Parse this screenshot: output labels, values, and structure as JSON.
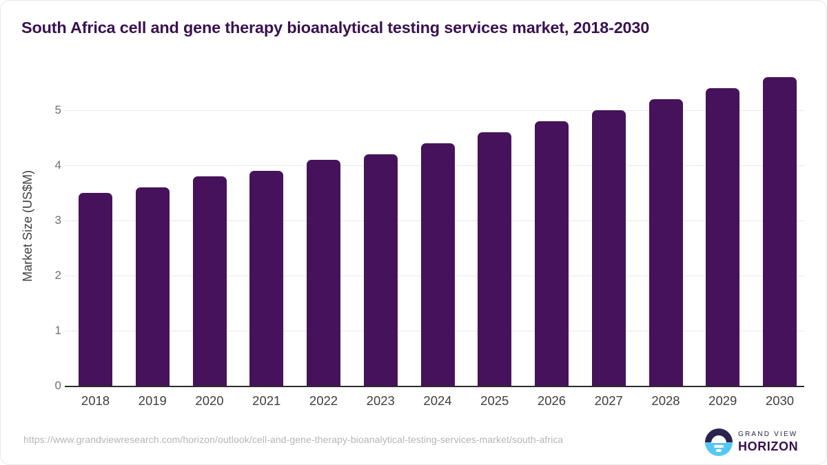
{
  "header": {
    "title": "South Africa cell and gene therapy bioanalytical testing services market, 2018-2030",
    "title_color": "#3a1150"
  },
  "chart_data": {
    "type": "bar",
    "title": "South Africa cell and gene therapy bioanalytical testing services market, 2018-2030",
    "categories": [
      "2018",
      "2019",
      "2020",
      "2021",
      "2022",
      "2023",
      "2024",
      "2025",
      "2026",
      "2027",
      "2028",
      "2029",
      "2030"
    ],
    "values": [
      3.5,
      3.6,
      3.8,
      3.9,
      4.1,
      4.2,
      4.4,
      4.6,
      4.8,
      5.0,
      5.2,
      5.4,
      5.6
    ],
    "xlabel": "",
    "ylabel": "Market Size (US$M)",
    "ylim": [
      0,
      5.8
    ],
    "yticks": [
      0,
      1,
      2,
      3,
      4,
      5
    ],
    "grid": true,
    "legend": false,
    "bar_color": "#46125b",
    "gridline_color": "#e9e9e9",
    "axis_line_color": "#2b2b2b"
  },
  "footer": {
    "source_url": "https://www.grandviewresearch.com/horizon/outlook/cell-and-gene-therapy-bioanalytical-testing-services-market/south-africa",
    "logo": {
      "top_text": "GRAND VIEW",
      "bottom_text": "HORIZON",
      "circle_top_color": "#2b2350",
      "circle_bottom_color": "#56c7f2"
    }
  }
}
